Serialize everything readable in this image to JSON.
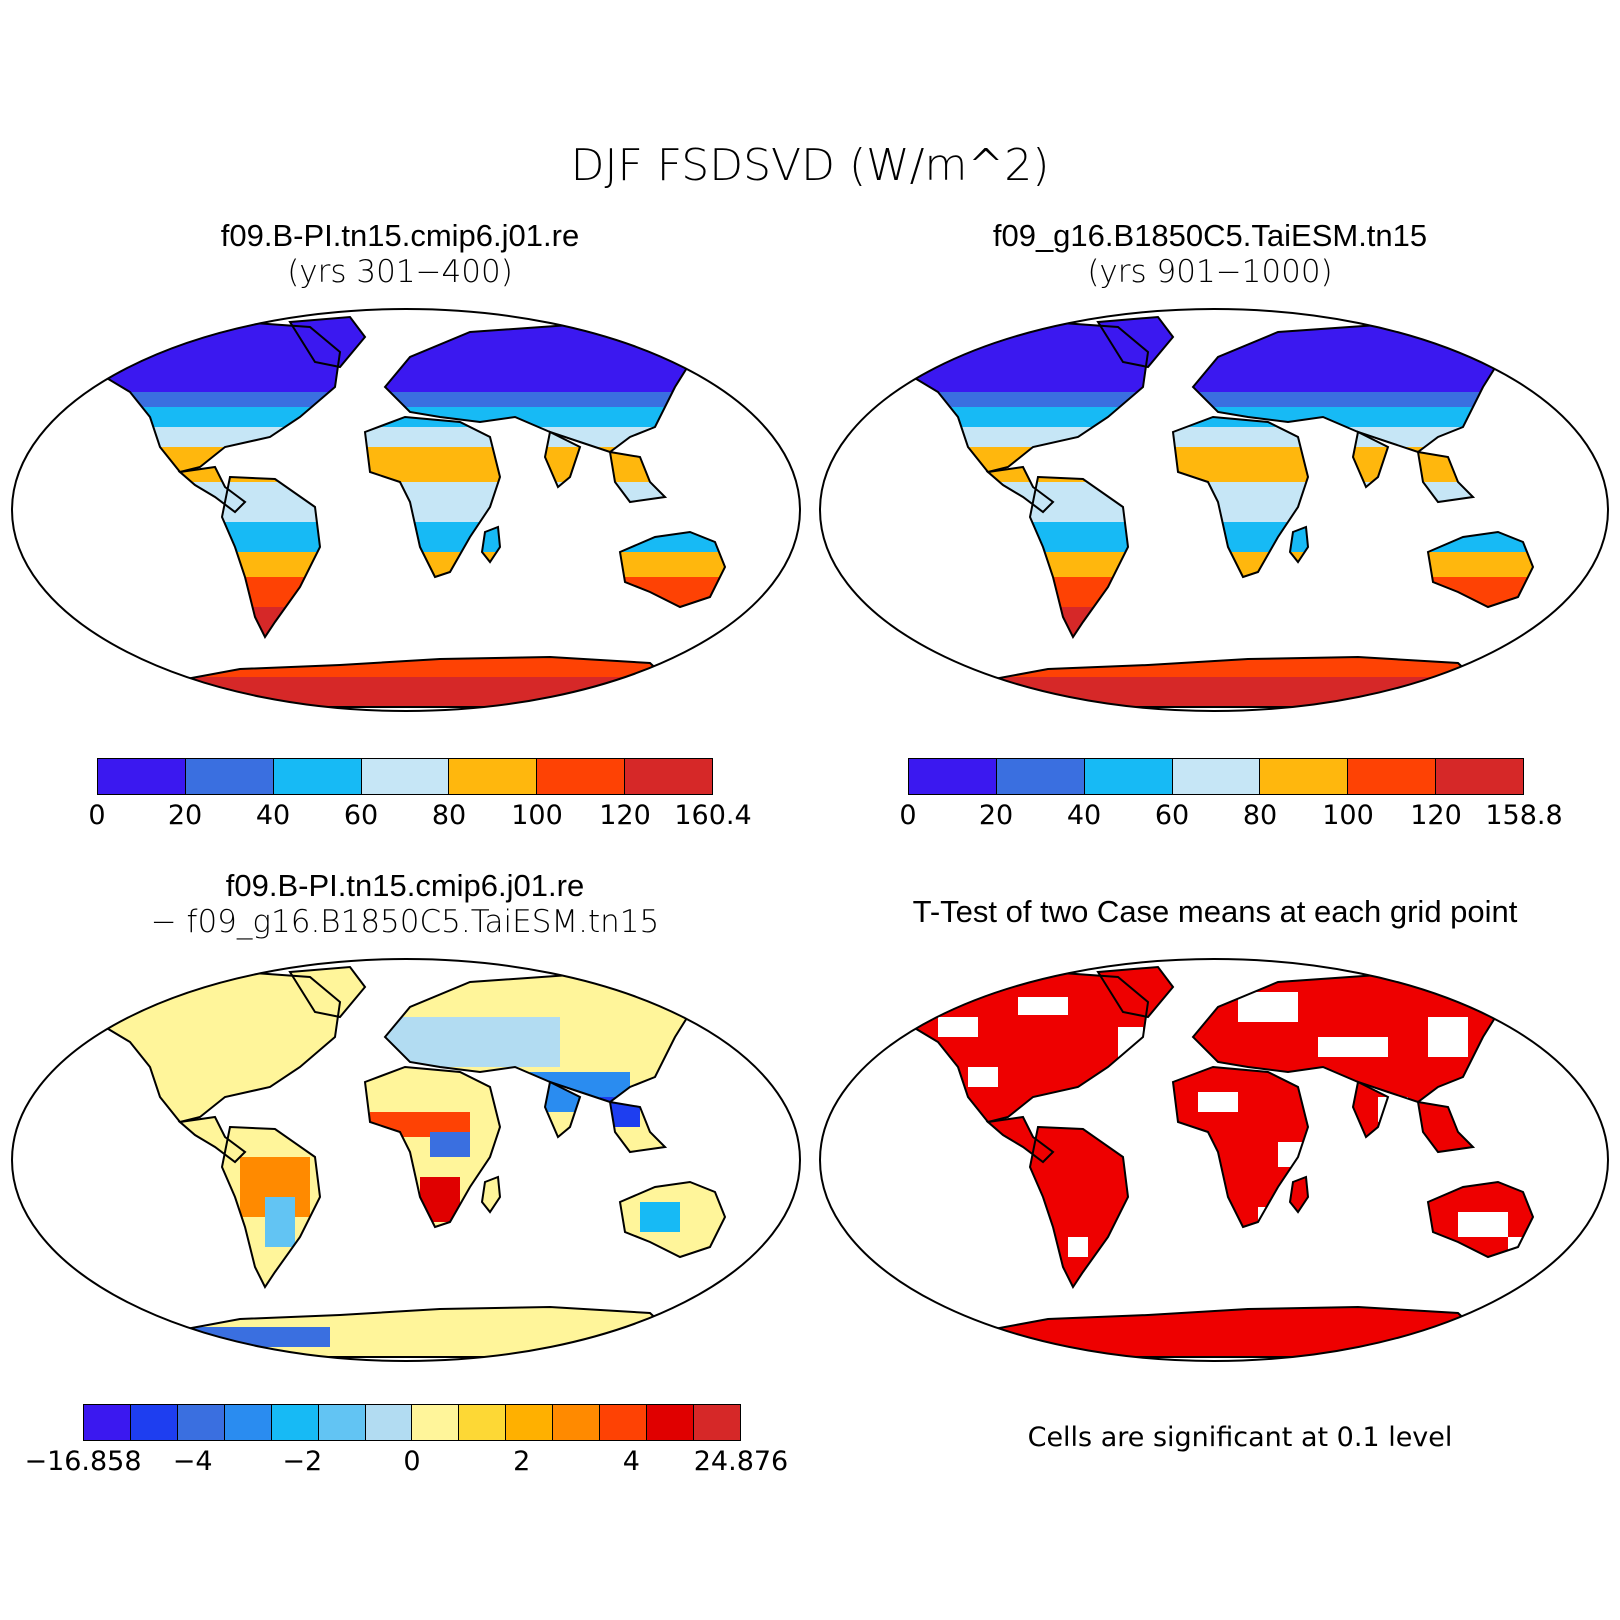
{
  "figure": {
    "title": "DJF FSDSVD (W/m^2)"
  },
  "panels": [
    {
      "title": "f09.B-PI.tn15.cmip6.j01.re",
      "subtitle": "(yrs 301−400)",
      "colorbar": {
        "colors": [
          "#3b18f0",
          "#3a6fe0",
          "#17baf5",
          "#c6e6f6",
          "#ffb70d",
          "#fe4204",
          "#d62828"
        ],
        "labels": [
          "0",
          "20",
          "40",
          "60",
          "80",
          "100",
          "120",
          "160.4"
        ]
      }
    },
    {
      "title": "f09_g16.B1850C5.TaiESM.tn15",
      "subtitle": "(yrs 901−1000)",
      "colorbar": {
        "colors": [
          "#3b18f0",
          "#3a6fe0",
          "#17baf5",
          "#c6e6f6",
          "#ffb70d",
          "#fe4204",
          "#d62828"
        ],
        "labels": [
          "0",
          "20",
          "40",
          "60",
          "80",
          "100",
          "120",
          "158.8"
        ]
      }
    },
    {
      "title": "f09.B-PI.tn15.cmip6.j01.re",
      "subtitle": "− f09_g16.B1850C5.TaiESM.tn15",
      "colorbar": {
        "colors": [
          "#3b18f0",
          "#1e3ef0",
          "#3a6fe0",
          "#2a8cf0",
          "#17baf5",
          "#62c4f3",
          "#b2dcf2",
          "#fff59a",
          "#fdd835",
          "#ffb000",
          "#ff8a00",
          "#fe4204",
          "#e00000",
          "#d62828"
        ],
        "labels": [
          "−16.858",
          "−4",
          "−2",
          "0",
          "2",
          "4",
          "24.876"
        ]
      }
    },
    {
      "title": "T-Test of two Case means at each grid point",
      "note": "Cells are significant at 0.1 level",
      "significant_color": "#ee0000"
    }
  ]
}
